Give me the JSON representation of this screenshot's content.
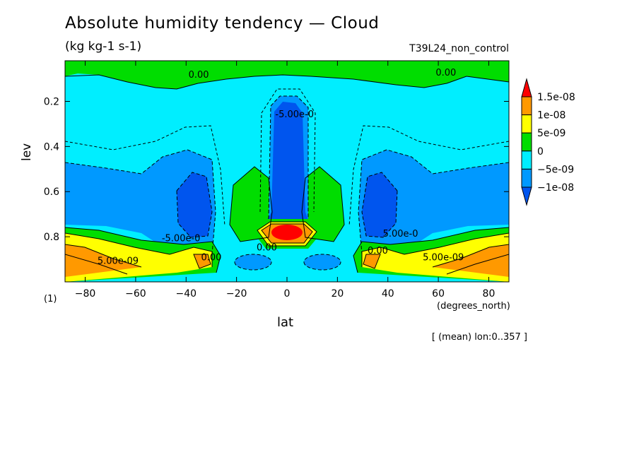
{
  "chart_data": {
    "type": "heatmap",
    "title": "Absolute humidity tendency — Cloud",
    "subtitle": "(kg kg-1 s-1)",
    "run_label": "T39L24_non_control",
    "xlabel": "lat",
    "xunit": "(degrees_north)",
    "ylabel": "lev",
    "yunit": "(1)",
    "footnote": "[ (mean) lon:0..357 ]",
    "xlim": [
      -88,
      88
    ],
    "ylim": [
      1.0,
      0.02
    ],
    "x_ticks": [
      -80,
      -60,
      -40,
      -20,
      0,
      20,
      40,
      60,
      80
    ],
    "y_ticks": [
      0.2,
      0.4,
      0.6,
      0.8
    ],
    "colorbar": {
      "labels": [
        "1.5e-08",
        "1e-08",
        "5e-09",
        "0",
        "-5e-09",
        "-1e-08"
      ],
      "colors": [
        "#ff0000",
        "#ff9900",
        "#ffff00",
        "#00dd00",
        "#00eeff",
        "#0099ff",
        "#0055ee"
      ]
    },
    "contour_labels": [
      {
        "text": "0.00",
        "lat": -35,
        "lev": 0.095
      },
      {
        "text": "0.00",
        "lat": 63,
        "lev": 0.085
      },
      {
        "text": "-5.00e-0",
        "lat": 3,
        "lev": 0.27
      },
      {
        "text": "5.00e-0",
        "lat": 45,
        "lev": 0.8
      },
      {
        "text": "-5.00e-0",
        "lat": -42,
        "lev": 0.82
      },
      {
        "text": "0.00",
        "lat": -8,
        "lev": 0.86
      },
      {
        "text": "0.00",
        "lat": -30,
        "lev": 0.905
      },
      {
        "text": "0.00",
        "lat": 36,
        "lev": 0.875
      },
      {
        "text": "5.00e-09",
        "lat": -67,
        "lev": 0.92
      },
      {
        "text": "5.00e-09",
        "lat": 62,
        "lev": 0.905
      }
    ]
  }
}
